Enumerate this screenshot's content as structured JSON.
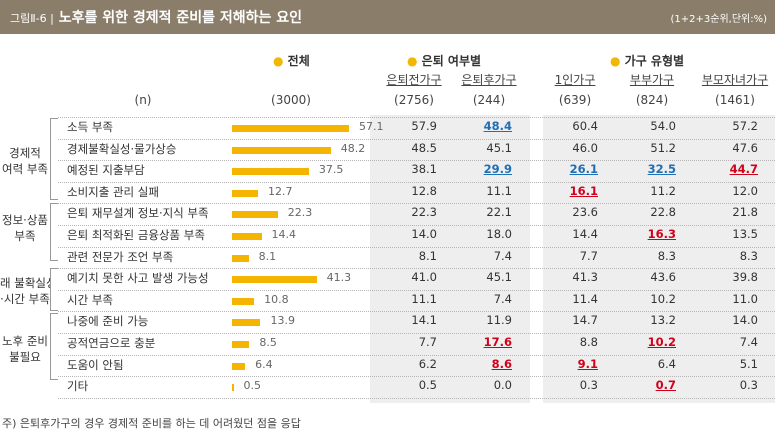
{
  "title": {
    "prefix": "그림Ⅱ-6 |",
    "text": "노후를 위한 경제적 준비를 저해하는 요인",
    "unit": "(1+2+3순위,단위:%)"
  },
  "headers": {
    "total": "전체",
    "retire": "은퇴 여부별",
    "household": "가구 유형별",
    "n_label": "(n)",
    "columns": [
      "은퇴전가구",
      "은퇴후가구",
      "1인가구",
      "부부가구",
      "부모자녀가구"
    ],
    "total_n": "(3000)",
    "n_values": [
      "(2756)",
      "(244)",
      "(639)",
      "(824)",
      "(1461)"
    ]
  },
  "groups": [
    {
      "lines": [
        "경제적",
        "여력 부족"
      ]
    },
    {
      "lines": [
        "정보·상품",
        "부족"
      ]
    },
    {
      "lines": [
        "래 불확실성",
        "·시간 부족"
      ]
    },
    {
      "lines": [
        "노후 준비",
        "불필요"
      ]
    }
  ],
  "rows": [
    {
      "label": "소득 부족",
      "total": "57.1",
      "values": [
        "57.9",
        "48.4",
        "60.4",
        "54.0",
        "57.2"
      ],
      "hl": [
        "",
        "b",
        "",
        "",
        ""
      ]
    },
    {
      "label": "경제불확실성·물가상승",
      "total": "48.2",
      "values": [
        "48.5",
        "45.1",
        "46.0",
        "51.2",
        "47.6"
      ],
      "hl": [
        "",
        "",
        "",
        "",
        ""
      ]
    },
    {
      "label": "예정된 지출부담",
      "total": "37.5",
      "values": [
        "38.1",
        "29.9",
        "26.1",
        "32.5",
        "44.7"
      ],
      "hl": [
        "",
        "b",
        "b",
        "b",
        "r"
      ]
    },
    {
      "label": "소비지출 관리 실패",
      "total": "12.7",
      "values": [
        "12.8",
        "11.1",
        "16.1",
        "11.2",
        "12.0"
      ],
      "hl": [
        "",
        "",
        "r",
        "",
        ""
      ]
    },
    {
      "label": "은퇴 재무설계 정보·지식 부족",
      "total": "22.3",
      "values": [
        "22.3",
        "22.1",
        "23.6",
        "22.8",
        "21.8"
      ],
      "hl": [
        "",
        "",
        "",
        "",
        ""
      ]
    },
    {
      "label": "은퇴 최적화된 금융상품 부족",
      "total": "14.4",
      "values": [
        "14.0",
        "18.0",
        "14.4",
        "16.3",
        "13.5"
      ],
      "hl": [
        "",
        "",
        "",
        "r",
        ""
      ]
    },
    {
      "label": "관련 전문가 조언 부족",
      "total": "8.1",
      "values": [
        "8.1",
        "7.4",
        "7.7",
        "8.3",
        "8.3"
      ],
      "hl": [
        "",
        "",
        "",
        "",
        ""
      ]
    },
    {
      "label": "예기치 못한 사고 발생 가능성",
      "total": "41.3",
      "values": [
        "41.0",
        "45.1",
        "41.3",
        "43.6",
        "39.8"
      ],
      "hl": [
        "",
        "",
        "",
        "",
        ""
      ]
    },
    {
      "label": "시간 부족",
      "total": "10.8",
      "values": [
        "11.1",
        "7.4",
        "11.4",
        "10.2",
        "11.0"
      ],
      "hl": [
        "",
        "",
        "",
        "",
        ""
      ]
    },
    {
      "label": "나중에 준비 가능",
      "total": "13.9",
      "values": [
        "14.1",
        "11.9",
        "14.7",
        "13.2",
        "14.0"
      ],
      "hl": [
        "",
        "",
        "",
        "",
        ""
      ]
    },
    {
      "label": "공적연금으로 충분",
      "total": "8.5",
      "values": [
        "7.7",
        "17.6",
        "8.8",
        "10.2",
        "7.4"
      ],
      "hl": [
        "",
        "r",
        "",
        "r",
        ""
      ]
    },
    {
      "label": "도움이 안됨",
      "total": "6.4",
      "values": [
        "6.2",
        "8.6",
        "9.1",
        "6.4",
        "5.1"
      ],
      "hl": [
        "",
        "r",
        "r",
        "",
        ""
      ]
    },
    {
      "label": "기타",
      "total": "0.5",
      "values": [
        "0.5",
        "0.0",
        "0.3",
        "0.7",
        "0.3"
      ],
      "hl": [
        "",
        "",
        "",
        "r",
        ""
      ]
    }
  ],
  "note": "주) 은퇴후가구의 경우 경제적 준비를 하는 데 어려웠던 점을 응답",
  "colors": {
    "bar": "#f4b400",
    "title_bg": "#8a7e6a",
    "highlight_blue": "#1f6fb5",
    "highlight_red": "#d0021b"
  }
}
